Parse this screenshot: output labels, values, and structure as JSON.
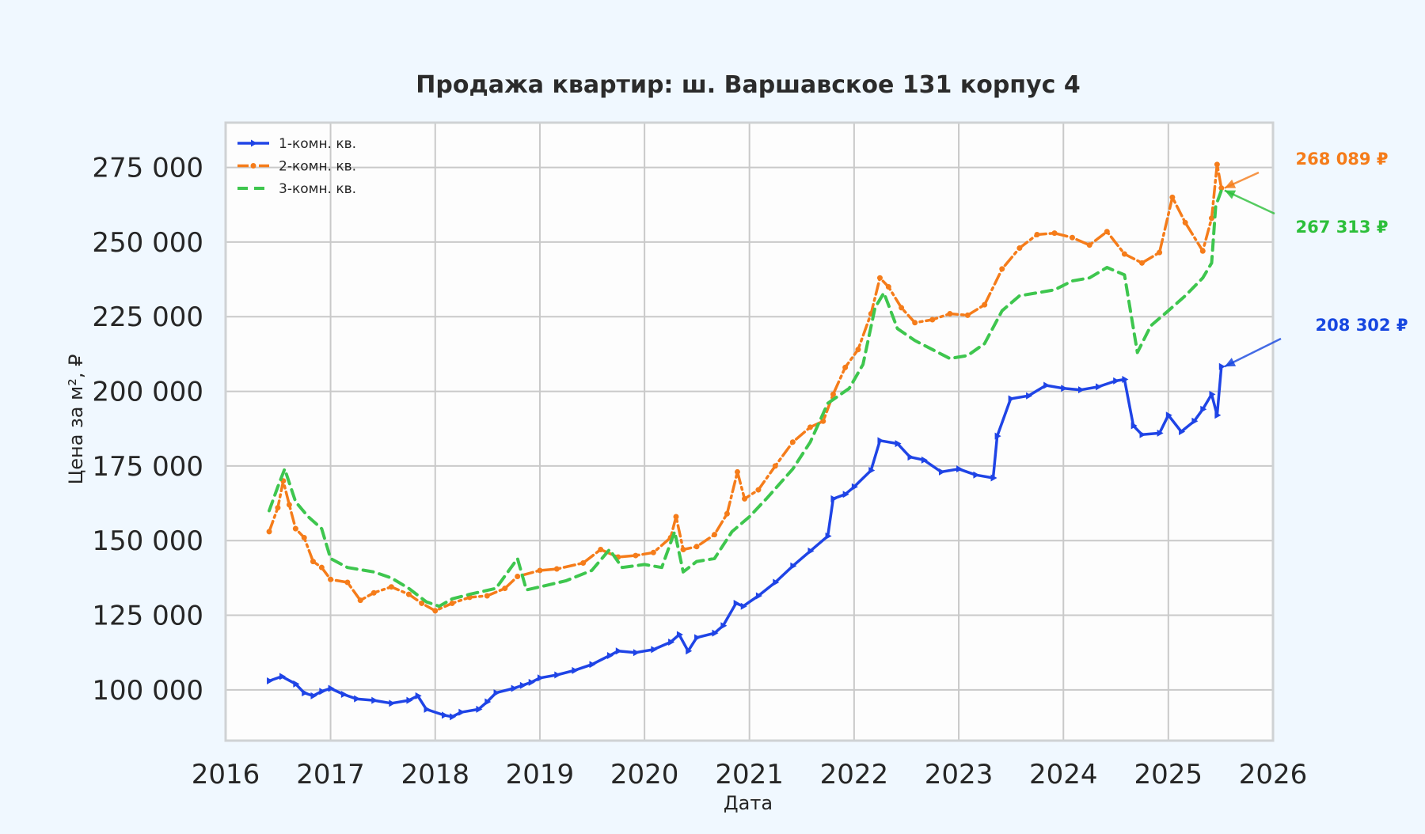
{
  "chart_data": {
    "type": "line",
    "title": "Продажа квартир: ш. Варшавское 131 корпус 4",
    "xlabel": "Дата",
    "ylabel": "Цена за м², ₽",
    "xlim": [
      "2016-01-01",
      "2026-01-01"
    ],
    "ylim": [
      83000,
      290000
    ],
    "x_ticks": [
      "2016",
      "2017",
      "2018",
      "2019",
      "2020",
      "2021",
      "2022",
      "2023",
      "2024",
      "2025",
      "2026"
    ],
    "y_ticks": [
      100000,
      125000,
      150000,
      175000,
      200000,
      225000,
      250000,
      275000
    ],
    "y_tick_labels": [
      "100 000",
      "125 000",
      "150 000",
      "175 000",
      "200 000",
      "225 000",
      "250 000",
      "275 000"
    ],
    "grid": true,
    "legend_position": "top-left",
    "series": [
      {
        "name": "1-комн. кв.",
        "color": "#1f44e6",
        "style": "solid-triangle-markers",
        "points": [
          [
            "2016-06-01",
            103000
          ],
          [
            "2016-07-15",
            104500
          ],
          [
            "2016-09-01",
            102000
          ],
          [
            "2016-10-01",
            99000
          ],
          [
            "2016-11-01",
            98000
          ],
          [
            "2016-12-01",
            99500
          ],
          [
            "2017-01-01",
            100500
          ],
          [
            "2017-02-15",
            98500
          ],
          [
            "2017-04-01",
            97000
          ],
          [
            "2017-06-01",
            96500
          ],
          [
            "2017-08-01",
            95500
          ],
          [
            "2017-10-01",
            96500
          ],
          [
            "2017-11-01",
            98000
          ],
          [
            "2017-12-01",
            93500
          ],
          [
            "2018-02-01",
            91500
          ],
          [
            "2018-03-01",
            91000
          ],
          [
            "2018-04-01",
            92500
          ],
          [
            "2018-06-01",
            93500
          ],
          [
            "2018-07-01",
            96000
          ],
          [
            "2018-08-01",
            99000
          ],
          [
            "2018-10-01",
            100500
          ],
          [
            "2018-11-01",
            101500
          ],
          [
            "2018-12-01",
            102500
          ],
          [
            "2019-01-01",
            104000
          ],
          [
            "2019-03-01",
            105000
          ],
          [
            "2019-05-01",
            106500
          ],
          [
            "2019-07-01",
            108500
          ],
          [
            "2019-09-01",
            111500
          ],
          [
            "2019-10-01",
            113000
          ],
          [
            "2019-12-01",
            112500
          ],
          [
            "2020-02-01",
            113500
          ],
          [
            "2020-04-01",
            116000
          ],
          [
            "2020-05-01",
            118500
          ],
          [
            "2020-06-01",
            113000
          ],
          [
            "2020-07-01",
            117500
          ],
          [
            "2020-09-01",
            119000
          ],
          [
            "2020-10-01",
            121500
          ],
          [
            "2020-11-15",
            129000
          ],
          [
            "2020-12-10",
            128000
          ],
          [
            "2021-02-01",
            131500
          ],
          [
            "2021-04-01",
            136000
          ],
          [
            "2021-06-01",
            141500
          ],
          [
            "2021-08-01",
            146500
          ],
          [
            "2021-10-01",
            151500
          ],
          [
            "2021-10-20",
            164000
          ],
          [
            "2021-12-01",
            165500
          ],
          [
            "2022-01-01",
            168000
          ],
          [
            "2022-03-01",
            173500
          ],
          [
            "2022-04-01",
            183500
          ],
          [
            "2022-06-01",
            182500
          ],
          [
            "2022-07-15",
            178000
          ],
          [
            "2022-09-01",
            177000
          ],
          [
            "2022-11-01",
            173000
          ],
          [
            "2023-01-01",
            174000
          ],
          [
            "2023-03-01",
            172000
          ],
          [
            "2023-05-01",
            171000
          ],
          [
            "2023-05-15",
            185000
          ],
          [
            "2023-07-01",
            197500
          ],
          [
            "2023-09-01",
            198500
          ],
          [
            "2023-11-01",
            202000
          ],
          [
            "2024-01-01",
            201000
          ],
          [
            "2024-03-01",
            200500
          ],
          [
            "2024-05-01",
            201500
          ],
          [
            "2024-07-01",
            203500
          ],
          [
            "2024-08-01",
            204000
          ],
          [
            "2024-09-01",
            188500
          ],
          [
            "2024-10-01",
            185500
          ],
          [
            "2024-12-01",
            186000
          ],
          [
            "2025-01-01",
            192000
          ],
          [
            "2025-02-15",
            186500
          ],
          [
            "2025-04-01",
            190000
          ],
          [
            "2025-05-01",
            194000
          ],
          [
            "2025-06-01",
            199000
          ],
          [
            "2025-06-20",
            192000
          ],
          [
            "2025-07-05",
            208302
          ]
        ]
      },
      {
        "name": "2-комн. кв.",
        "color": "#f57c1a",
        "style": "dashdot-dot-markers",
        "points": [
          [
            "2016-06-01",
            153000
          ],
          [
            "2016-07-01",
            161000
          ],
          [
            "2016-07-20",
            170000
          ],
          [
            "2016-08-10",
            162000
          ],
          [
            "2016-09-01",
            154000
          ],
          [
            "2016-10-01",
            151000
          ],
          [
            "2016-11-01",
            143000
          ],
          [
            "2016-12-01",
            141000
          ],
          [
            "2017-01-01",
            137000
          ],
          [
            "2017-03-01",
            136000
          ],
          [
            "2017-04-15",
            130000
          ],
          [
            "2017-06-01",
            132500
          ],
          [
            "2017-08-01",
            134500
          ],
          [
            "2017-10-01",
            132000
          ],
          [
            "2017-11-15",
            129000
          ],
          [
            "2018-01-01",
            126500
          ],
          [
            "2018-03-01",
            129000
          ],
          [
            "2018-05-01",
            131000
          ],
          [
            "2018-07-01",
            131500
          ],
          [
            "2018-09-01",
            134000
          ],
          [
            "2018-10-15",
            138000
          ],
          [
            "2019-01-01",
            140000
          ],
          [
            "2019-03-01",
            140500
          ],
          [
            "2019-06-01",
            142500
          ],
          [
            "2019-08-01",
            147000
          ],
          [
            "2019-10-01",
            144500
          ],
          [
            "2019-12-01",
            145000
          ],
          [
            "2020-02-01",
            146000
          ],
          [
            "2020-04-01",
            151000
          ],
          [
            "2020-04-20",
            158000
          ],
          [
            "2020-05-15",
            147000
          ],
          [
            "2020-07-01",
            148000
          ],
          [
            "2020-09-01",
            152000
          ],
          [
            "2020-10-15",
            159000
          ],
          [
            "2020-11-20",
            173000
          ],
          [
            "2020-12-15",
            164000
          ],
          [
            "2021-02-01",
            167000
          ],
          [
            "2021-04-01",
            175000
          ],
          [
            "2021-06-01",
            183000
          ],
          [
            "2021-08-01",
            188000
          ],
          [
            "2021-09-15",
            190000
          ],
          [
            "2021-10-20",
            199000
          ],
          [
            "2021-12-01",
            208000
          ],
          [
            "2022-01-15",
            214000
          ],
          [
            "2022-03-01",
            226000
          ],
          [
            "2022-04-01",
            238000
          ],
          [
            "2022-05-01",
            235000
          ],
          [
            "2022-06-15",
            228000
          ],
          [
            "2022-08-01",
            223000
          ],
          [
            "2022-10-01",
            224000
          ],
          [
            "2022-12-01",
            226000
          ],
          [
            "2023-02-01",
            225500
          ],
          [
            "2023-04-01",
            229000
          ],
          [
            "2023-06-01",
            241000
          ],
          [
            "2023-08-01",
            248000
          ],
          [
            "2023-10-01",
            252500
          ],
          [
            "2023-12-01",
            253000
          ],
          [
            "2024-02-01",
            251500
          ],
          [
            "2024-04-01",
            249000
          ],
          [
            "2024-06-01",
            253500
          ],
          [
            "2024-08-01",
            246000
          ],
          [
            "2024-10-01",
            243000
          ],
          [
            "2024-12-01",
            246500
          ],
          [
            "2025-01-15",
            265000
          ],
          [
            "2025-03-01",
            256500
          ],
          [
            "2025-05-01",
            247000
          ],
          [
            "2025-06-01",
            258000
          ],
          [
            "2025-06-20",
            276000
          ],
          [
            "2025-07-05",
            268089
          ]
        ]
      },
      {
        "name": "3-комн. кв.",
        "color": "#3ec64e",
        "style": "dashed",
        "points": [
          [
            "2016-06-01",
            160000
          ],
          [
            "2016-07-01",
            168000
          ],
          [
            "2016-07-25",
            174000
          ],
          [
            "2016-09-01",
            163000
          ],
          [
            "2016-10-15",
            158000
          ],
          [
            "2016-12-01",
            154000
          ],
          [
            "2017-01-01",
            144000
          ],
          [
            "2017-03-01",
            141000
          ],
          [
            "2017-06-01",
            139500
          ],
          [
            "2017-08-01",
            137500
          ],
          [
            "2017-10-01",
            134000
          ],
          [
            "2017-12-01",
            129500
          ],
          [
            "2018-01-15",
            128000
          ],
          [
            "2018-03-01",
            130500
          ],
          [
            "2018-05-01",
            132000
          ],
          [
            "2018-08-01",
            134000
          ],
          [
            "2018-10-15",
            144000
          ],
          [
            "2018-11-15",
            133500
          ],
          [
            "2019-01-01",
            134500
          ],
          [
            "2019-04-01",
            136500
          ],
          [
            "2019-07-01",
            140000
          ],
          [
            "2019-09-01",
            147000
          ],
          [
            "2019-10-15",
            141000
          ],
          [
            "2020-01-01",
            142000
          ],
          [
            "2020-03-01",
            141000
          ],
          [
            "2020-04-15",
            153000
          ],
          [
            "2020-05-15",
            139500
          ],
          [
            "2020-07-01",
            143000
          ],
          [
            "2020-09-01",
            144000
          ],
          [
            "2020-11-01",
            153000
          ],
          [
            "2021-01-01",
            158000
          ],
          [
            "2021-03-01",
            164000
          ],
          [
            "2021-06-01",
            174000
          ],
          [
            "2021-08-01",
            183000
          ],
          [
            "2021-10-01",
            196000
          ],
          [
            "2021-12-15",
            201000
          ],
          [
            "2022-02-01",
            209000
          ],
          [
            "2022-03-15",
            228000
          ],
          [
            "2022-04-15",
            233000
          ],
          [
            "2022-06-01",
            221000
          ],
          [
            "2022-08-01",
            217000
          ],
          [
            "2022-10-01",
            214000
          ],
          [
            "2022-12-01",
            211000
          ],
          [
            "2023-02-01",
            212000
          ],
          [
            "2023-04-01",
            216000
          ],
          [
            "2023-06-01",
            227000
          ],
          [
            "2023-08-01",
            232000
          ],
          [
            "2023-10-01",
            233000
          ],
          [
            "2023-12-01",
            234000
          ],
          [
            "2024-02-01",
            237000
          ],
          [
            "2024-04-01",
            238000
          ],
          [
            "2024-06-01",
            241500
          ],
          [
            "2024-08-01",
            239000
          ],
          [
            "2024-09-15",
            213000
          ],
          [
            "2024-11-01",
            222000
          ],
          [
            "2025-01-01",
            227000
          ],
          [
            "2025-03-01",
            232000
          ],
          [
            "2025-05-01",
            238000
          ],
          [
            "2025-06-01",
            243000
          ],
          [
            "2025-06-15",
            262000
          ],
          [
            "2025-07-05",
            267313
          ]
        ]
      }
    ],
    "annotations": [
      {
        "text": "268 089 ₽",
        "series": "2-комн. кв.",
        "color": "#f57c1a",
        "date": "2025-07-05",
        "value": 268089
      },
      {
        "text": "267 313 ₽",
        "series": "3-комн. кв.",
        "color": "#2cbf3a",
        "date": "2025-07-05",
        "value": 267313
      },
      {
        "text": "208 302 ₽",
        "series": "1-комн. кв.",
        "color": "#1747e0",
        "date": "2025-07-05",
        "value": 208302
      }
    ]
  }
}
